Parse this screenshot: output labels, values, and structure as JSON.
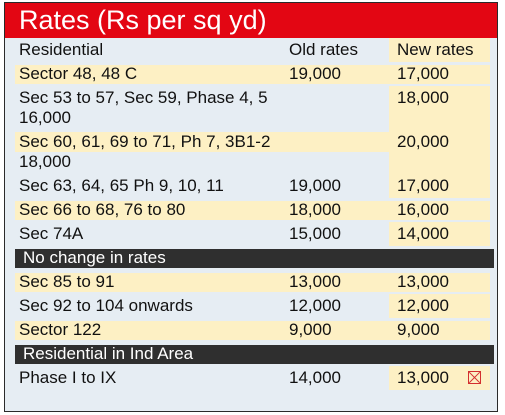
{
  "title": "Rates (Rs per sq yd)",
  "header": {
    "area": "Residential",
    "old": "Old rates",
    "new": "New rates"
  },
  "rows": [
    {
      "area": "Sector 48, 48 C",
      "old": "19,000",
      "new": "17,000"
    },
    {
      "area": "Sec 53 to 57, Sec 59, Phase 4, 5 16,000",
      "old": "",
      "new": "18,000"
    },
    {
      "area": "Sec 60, 61, 69 to 71, Ph 7, 3B1-2 18,000",
      "old": "",
      "new": "20,000"
    },
    {
      "area": "Sec 63, 64, 65 Ph 9, 10, 11",
      "old": "19,000",
      "new": "17,000"
    },
    {
      "area": "Sec 66 to 68, 76 to 80",
      "old": "18,000",
      "new": "16,000"
    },
    {
      "area": "Sec 74A",
      "old": "15,000",
      "new": "14,000"
    }
  ],
  "section_no_change": "No change in rates",
  "rows_no_change": [
    {
      "area": "Sec 85 to 91",
      "old": "13,000",
      "new": "13,000"
    },
    {
      "area": "Sec 92 to 104 onwards",
      "old": "12,000",
      "new": "12,000"
    },
    {
      "area": "Sector 122",
      "old": "9,000",
      "new": "9,000"
    }
  ],
  "section_ind_area": "Residential in Ind Area",
  "rows_ind_area": [
    {
      "area": "Phase I to IX",
      "old": "14,000",
      "new": "13,000"
    }
  ],
  "icons": {
    "broken_image": "broken-image-icon"
  },
  "colors": {
    "title_bg": "#e30613",
    "highlight": "#fdf0c4",
    "section_bg": "#2f2f2f",
    "base": "#e6edf3"
  }
}
